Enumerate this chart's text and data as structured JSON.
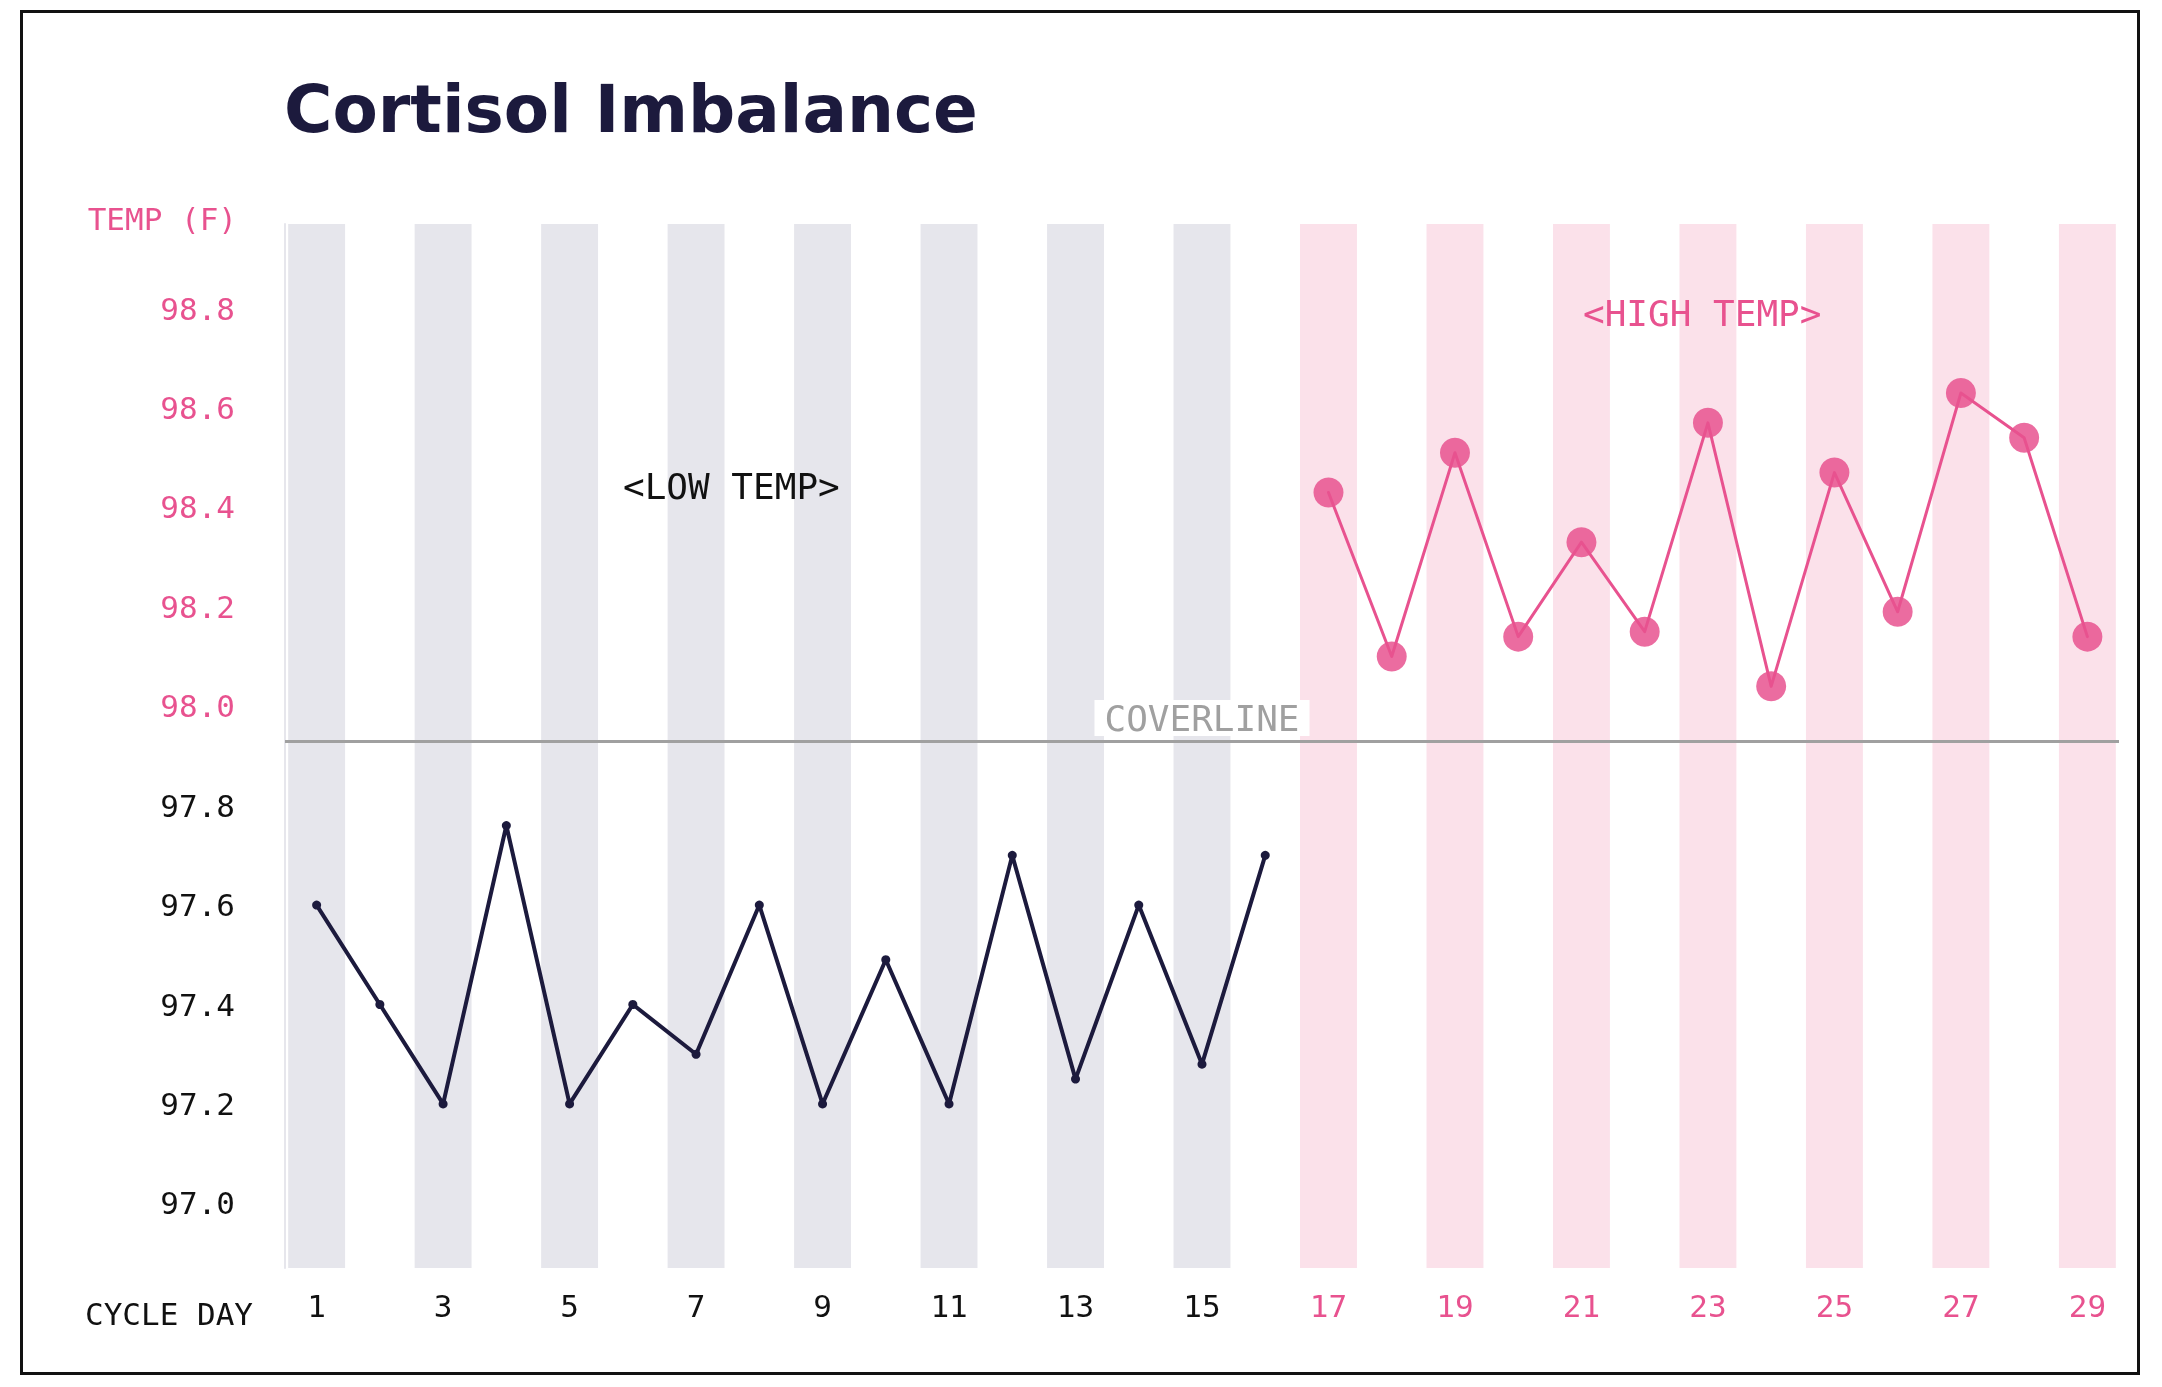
{
  "chart_data": {
    "type": "line",
    "title": "Cortisol Imbalance",
    "ylabel": "TEMP (F)",
    "xlabel": "CYCLE DAY",
    "annotations": [
      "<LOW TEMP>",
      "<HIGH TEMP>"
    ],
    "xlim": [
      0.5,
      29.5
    ],
    "xticks": [
      1,
      3,
      5,
      7,
      9,
      11,
      13,
      15,
      17,
      19,
      21,
      23,
      25,
      27,
      29
    ],
    "ylim": [
      96.87,
      98.97
    ],
    "yticks": [
      {
        "value": 97,
        "label": "97.0"
      },
      97.2,
      97.4,
      97.6,
      97.8,
      {
        "value": 98,
        "label": "98.0"
      },
      98.2,
      98.4,
      98.6,
      98.8
    ],
    "grid": false,
    "marker": "circle",
    "line_style": "solid",
    "series": [
      {
        "color": "#1c1a3d",
        "x": [
          1,
          2,
          3,
          4,
          5,
          6,
          7,
          8,
          9,
          10,
          11,
          12,
          13,
          14,
          15,
          16
        ],
        "values": [
          97.6,
          97.4,
          97.2,
          97.76,
          97.2,
          97.4,
          97.3,
          97.6,
          97.2,
          97.49,
          97.2,
          97.7,
          97.25,
          97.6,
          97.28,
          97.7
        ]
      },
      {
        "color": "#e8528f",
        "x": [
          17,
          18,
          19,
          20,
          21,
          22,
          23,
          24,
          25,
          26,
          27,
          28,
          29
        ],
        "values": [
          98.43,
          98.1,
          98.51,
          98.14,
          98.33,
          98.15,
          98.57,
          98.04,
          98.47,
          98.19,
          98.63,
          98.54,
          98.14
        ]
      }
    ],
    "ref_lines": [
      {
        "axis": "y",
        "value": 97.93,
        "label": "COVERLINE",
        "color": "#a0a0a0"
      }
    ],
    "bands": [
      {
        "axis": "x",
        "from": 0.55,
        "to": 1.45,
        "color": "#e6e6ec"
      },
      {
        "axis": "x",
        "from": 2.55,
        "to": 3.45,
        "color": "#e6e6ec"
      },
      {
        "axis": "x",
        "from": 4.55,
        "to": 5.45,
        "color": "#e6e6ec"
      },
      {
        "axis": "x",
        "from": 6.55,
        "to": 7.45,
        "color": "#e6e6ec"
      },
      {
        "axis": "x",
        "from": 8.55,
        "to": 9.45,
        "color": "#e6e6ec"
      },
      {
        "axis": "x",
        "from": 10.55,
        "to": 11.45,
        "color": "#e6e6ec"
      },
      {
        "axis": "x",
        "from": 12.55,
        "to": 13.45,
        "color": "#e6e6ec"
      },
      {
        "axis": "x",
        "from": 14.55,
        "to": 15.45,
        "color": "#e6e6ec"
      },
      {
        "axis": "x",
        "from": 16.55,
        "to": 17.45,
        "color": "#fbe1ea"
      },
      {
        "axis": "x",
        "from": 18.55,
        "to": 19.45,
        "color": "#fbe1ea"
      },
      {
        "axis": "x",
        "from": 20.55,
        "to": 21.45,
        "color": "#fbe1ea"
      },
      {
        "axis": "x",
        "from": 22.55,
        "to": 23.45,
        "color": "#fbe1ea"
      },
      {
        "axis": "x",
        "from": 24.55,
        "to": 25.45,
        "color": "#fbe1ea"
      },
      {
        "axis": "x",
        "from": 26.55,
        "to": 27.45,
        "color": "#fbe1ea"
      },
      {
        "axis": "x",
        "from": 28.55,
        "to": 29.45,
        "color": "#fbe1ea"
      }
    ]
  }
}
